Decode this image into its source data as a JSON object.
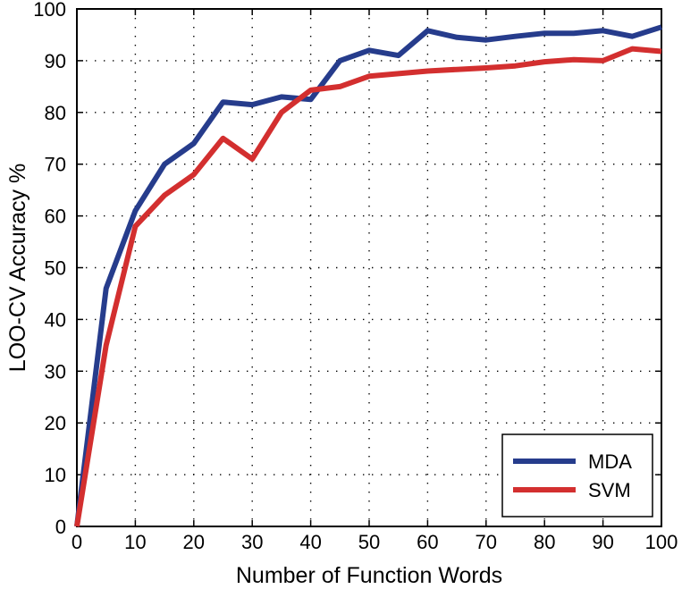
{
  "chart_data": {
    "type": "line",
    "xlabel": "Number of Function Words",
    "ylabel": "LOO-CV Accuracy %",
    "xlim": [
      0,
      100
    ],
    "ylim": [
      0,
      100
    ],
    "xticks": [
      0,
      10,
      20,
      30,
      40,
      50,
      60,
      70,
      80,
      90,
      100
    ],
    "yticks": [
      0,
      10,
      20,
      30,
      40,
      50,
      60,
      70,
      80,
      90,
      100
    ],
    "x": [
      0,
      5,
      10,
      15,
      20,
      25,
      30,
      35,
      40,
      45,
      50,
      55,
      60,
      65,
      70,
      75,
      80,
      85,
      90,
      95,
      100
    ],
    "grid": true,
    "legend_position": "bottom-right",
    "series": [
      {
        "name": "MDA",
        "color": "#263c8c",
        "values": [
          0,
          46,
          61,
          70,
          74,
          82,
          81.5,
          83,
          82.5,
          90,
          92,
          91,
          95.8,
          94.5,
          94,
          94.7,
          95.3,
          95.3,
          95.8,
          94.7,
          96.5
        ]
      },
      {
        "name": "SVM",
        "color": "#d32f2f",
        "values": [
          0,
          35,
          58,
          64,
          68,
          75,
          71,
          80,
          84.3,
          85,
          87,
          87.5,
          88,
          88.3,
          88.6,
          89,
          89.8,
          90.2,
          90,
          92.3,
          91.8
        ]
      }
    ]
  }
}
